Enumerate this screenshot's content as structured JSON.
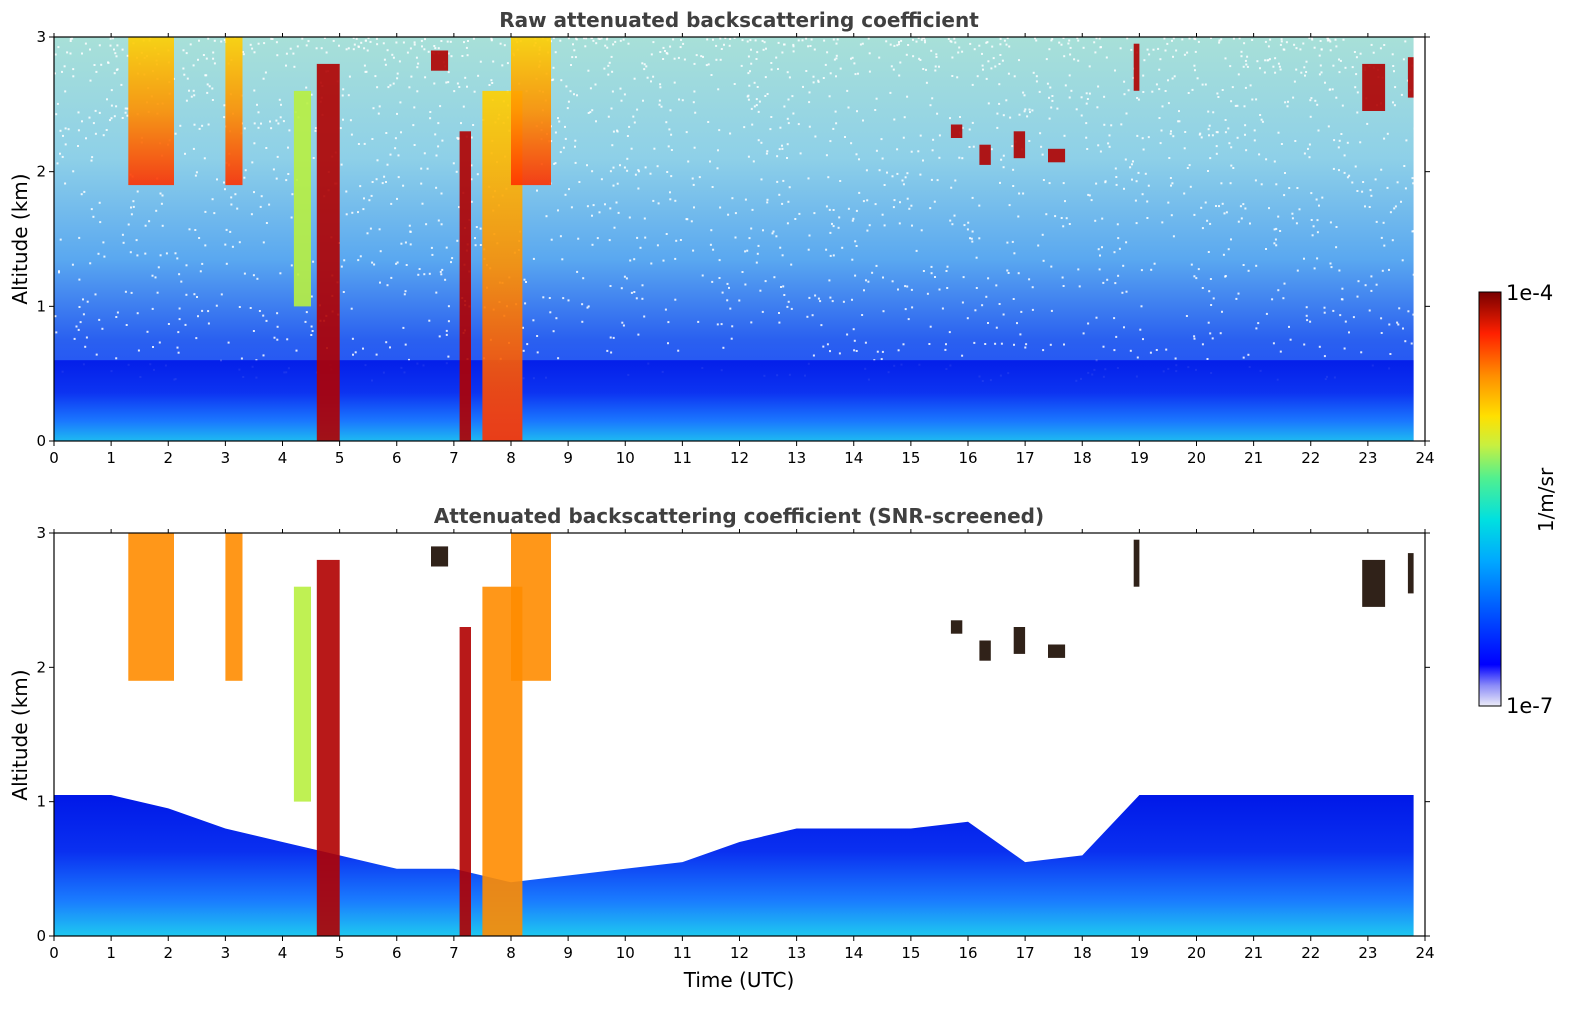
{
  "chart_data": [
    {
      "type": "heatmap",
      "title": "Raw attenuated backscattering coefficient",
      "xlabel": "",
      "ylabel": "Altitude (km)",
      "xlim": [
        0,
        24
      ],
      "ylim": [
        0,
        3
      ],
      "xticks": [
        "0",
        "1",
        "2",
        "3",
        "4",
        "5",
        "6",
        "7",
        "8",
        "9",
        "10",
        "11",
        "12",
        "13",
        "14",
        "15",
        "16",
        "17",
        "18",
        "19",
        "20",
        "21",
        "22",
        "23",
        "24"
      ],
      "yticks": [
        "0",
        "1",
        "2",
        "3"
      ],
      "screened": false,
      "features": [
        {
          "x": [
            1.3,
            2.1
          ],
          "y": [
            1.9,
            3.0
          ],
          "level": "high"
        },
        {
          "x": [
            3.0,
            3.3
          ],
          "y": [
            1.9,
            3.0
          ],
          "level": "high"
        },
        {
          "x": [
            4.2,
            4.5
          ],
          "y": [
            1.0,
            2.6
          ],
          "level": "medium"
        },
        {
          "x": [
            4.6,
            5.0
          ],
          "y": [
            0.0,
            2.8
          ],
          "level": "very-high"
        },
        {
          "x": [
            6.6,
            6.9
          ],
          "y": [
            2.75,
            2.9
          ],
          "level": "very-high"
        },
        {
          "x": [
            7.1,
            7.3
          ],
          "y": [
            0.0,
            2.3
          ],
          "level": "very-high"
        },
        {
          "x": [
            7.5,
            8.2
          ],
          "y": [
            0.0,
            2.6
          ],
          "level": "high"
        },
        {
          "x": [
            8.0,
            8.7
          ],
          "y": [
            1.9,
            3.0
          ],
          "level": "high"
        },
        {
          "x": [
            15.7,
            15.9
          ],
          "y": [
            2.25,
            2.35
          ],
          "level": "very-high"
        },
        {
          "x": [
            16.2,
            16.4
          ],
          "y": [
            2.05,
            2.2
          ],
          "level": "very-high"
        },
        {
          "x": [
            16.8,
            17.0
          ],
          "y": [
            2.1,
            2.3
          ],
          "level": "very-high"
        },
        {
          "x": [
            17.4,
            17.7
          ],
          "y": [
            2.07,
            2.17
          ],
          "level": "very-high"
        },
        {
          "x": [
            18.9,
            19.0
          ],
          "y": [
            2.6,
            2.95
          ],
          "level": "very-high"
        },
        {
          "x": [
            22.9,
            23.3
          ],
          "y": [
            2.45,
            2.8
          ],
          "level": "very-high"
        },
        {
          "x": [
            23.7,
            23.8
          ],
          "y": [
            2.55,
            2.85
          ],
          "level": "very-high"
        }
      ]
    },
    {
      "type": "heatmap",
      "title": "Attenuated backscattering coefficient (SNR-screened)",
      "xlabel": "Time (UTC)",
      "ylabel": "Altitude (km)",
      "xlim": [
        0,
        24
      ],
      "ylim": [
        0,
        3
      ],
      "xticks": [
        "0",
        "1",
        "2",
        "3",
        "4",
        "5",
        "6",
        "7",
        "8",
        "9",
        "10",
        "11",
        "12",
        "13",
        "14",
        "15",
        "16",
        "17",
        "18",
        "19",
        "20",
        "21",
        "22",
        "23",
        "24"
      ],
      "yticks": [
        "0",
        "1",
        "2",
        "3"
      ],
      "screened": true,
      "boundary_layer_top_km": [
        [
          0,
          1.05
        ],
        [
          1,
          1.05
        ],
        [
          2,
          0.95
        ],
        [
          3,
          0.8
        ],
        [
          4,
          0.7
        ],
        [
          5,
          0.6
        ],
        [
          6,
          0.5
        ],
        [
          7,
          0.5
        ],
        [
          8,
          0.4
        ],
        [
          9,
          0.45
        ],
        [
          10,
          0.5
        ],
        [
          11,
          0.55
        ],
        [
          12,
          0.7
        ],
        [
          13,
          0.8
        ],
        [
          14,
          0.8
        ],
        [
          15,
          0.8
        ],
        [
          16,
          0.85
        ],
        [
          17,
          0.55
        ],
        [
          18,
          0.6
        ],
        [
          19,
          1.05
        ],
        [
          20,
          1.05
        ],
        [
          21,
          1.05
        ],
        [
          22,
          1.05
        ],
        [
          23,
          1.05
        ],
        [
          23.8,
          1.05
        ]
      ]
    }
  ],
  "colorbar": {
    "label": "1/m/sr",
    "max_label": "1e-4",
    "min_label": "1e-7",
    "scale": "log",
    "range": [
      1e-07,
      0.0001
    ],
    "colormap": [
      "#e8e8f8",
      "#0000ff",
      "#0050ff",
      "#00a0ff",
      "#00d8e8",
      "#40f0a0",
      "#c0f040",
      "#ffe000",
      "#ff9000",
      "#ff3000",
      "#b00000",
      "#700000"
    ]
  }
}
